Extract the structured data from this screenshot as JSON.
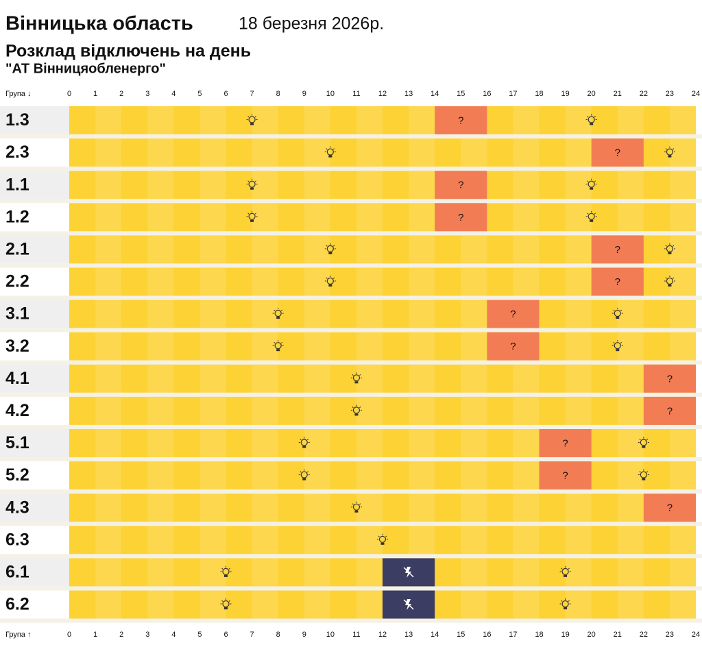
{
  "header": {
    "region": "Вінницька область",
    "date": "18 березня 2026р.",
    "subtitle": "Розклад відключень на день",
    "company": "\"АТ Вінницяобленерго\""
  },
  "table": {
    "group_top": "Група ↓",
    "group_bottom": "Група ↑",
    "hours": [
      0,
      1,
      2,
      3,
      4,
      5,
      6,
      7,
      8,
      9,
      10,
      11,
      12,
      13,
      14,
      15,
      16,
      17,
      18,
      19,
      20,
      21,
      22,
      23,
      24
    ],
    "bar_color": "#fdd235",
    "rows": [
      {
        "group": "1.3",
        "bulbs": [
          7,
          20
        ],
        "blocks": [
          {
            "from": 14,
            "to": 16,
            "label": "?",
            "color": "#f27d55"
          }
        ]
      },
      {
        "group": "2.3",
        "bulbs": [
          10,
          23
        ],
        "blocks": [
          {
            "from": 20,
            "to": 22,
            "label": "?",
            "color": "#f27d55"
          }
        ]
      },
      {
        "group": "1.1",
        "bulbs": [
          7,
          20
        ],
        "blocks": [
          {
            "from": 14,
            "to": 16,
            "label": "?",
            "color": "#f27d55"
          }
        ]
      },
      {
        "group": "1.2",
        "bulbs": [
          7,
          20
        ],
        "blocks": [
          {
            "from": 14,
            "to": 16,
            "label": "?",
            "color": "#f27d55"
          }
        ]
      },
      {
        "group": "2.1",
        "bulbs": [
          10,
          23
        ],
        "blocks": [
          {
            "from": 20,
            "to": 22,
            "label": "?",
            "color": "#f27d55"
          }
        ]
      },
      {
        "group": "2.2",
        "bulbs": [
          10,
          23
        ],
        "blocks": [
          {
            "from": 20,
            "to": 22,
            "label": "?",
            "color": "#f27d55"
          }
        ]
      },
      {
        "group": "3.1",
        "bulbs": [
          8,
          21
        ],
        "blocks": [
          {
            "from": 16,
            "to": 18,
            "label": "?",
            "color": "#f27d55"
          }
        ]
      },
      {
        "group": "3.2",
        "bulbs": [
          8,
          21
        ],
        "blocks": [
          {
            "from": 16,
            "to": 18,
            "label": "?",
            "color": "#f27d55"
          }
        ]
      },
      {
        "group": "4.1",
        "bulbs": [
          11
        ],
        "blocks": [
          {
            "from": 22,
            "to": 24,
            "label": "?",
            "color": "#f27d55"
          }
        ]
      },
      {
        "group": "4.2",
        "bulbs": [
          11
        ],
        "blocks": [
          {
            "from": 22,
            "to": 24,
            "label": "?",
            "color": "#f27d55"
          }
        ]
      },
      {
        "group": "5.1",
        "bulbs": [
          9,
          22
        ],
        "blocks": [
          {
            "from": 18,
            "to": 20,
            "label": "?",
            "color": "#f27d55"
          }
        ]
      },
      {
        "group": "5.2",
        "bulbs": [
          9,
          22
        ],
        "blocks": [
          {
            "from": 18,
            "to": 20,
            "label": "?",
            "color": "#f27d55"
          }
        ]
      },
      {
        "group": "4.3",
        "bulbs": [
          11
        ],
        "blocks": [
          {
            "from": 22,
            "to": 24,
            "label": "?",
            "color": "#f27d55"
          }
        ]
      },
      {
        "group": "6.3",
        "bulbs": [
          12
        ],
        "blocks": []
      },
      {
        "group": "6.1",
        "bulbs": [
          6,
          19
        ],
        "blocks": [
          {
            "from": 12,
            "to": 14,
            "color": "#3b3d62"
          }
        ]
      },
      {
        "group": "6.2",
        "bulbs": [
          6,
          19
        ],
        "blocks": [
          {
            "from": 12,
            "to": 14,
            "color": "#3b3d62"
          }
        ]
      }
    ]
  }
}
